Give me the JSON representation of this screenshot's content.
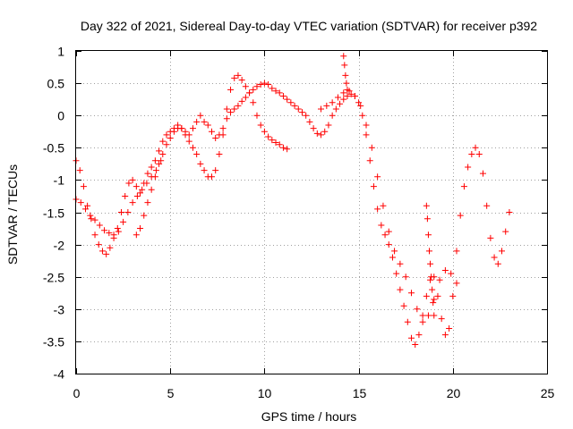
{
  "chart_data": {
    "type": "scatter",
    "title": "Day 322 of 2021, Sidereal Day-to-day VTEC variation (SDTVAR) for receiver p392",
    "xlabel": "GPS time / hours",
    "ylabel": "SDTVAR / TECUs",
    "xlim": [
      0,
      25
    ],
    "ylim": [
      -4,
      1
    ],
    "xticks": [
      0,
      5,
      10,
      15,
      20,
      25
    ],
    "xtick_labels": [
      "0",
      "5",
      "10",
      "15",
      "20",
      "25"
    ],
    "yticks": [
      1,
      0.5,
      0,
      -0.5,
      -1,
      -1.5,
      -2,
      -2.5,
      -3,
      -3.5,
      -4
    ],
    "ytick_labels": [
      "1",
      "0.5",
      "0",
      "-0.5",
      "-1",
      "-1.5",
      "-2",
      "-2.5",
      "-3",
      "-3.5",
      "-4"
    ],
    "grid": true,
    "marker": "+",
    "series": [
      {
        "name": "SDTVAR",
        "color": "#ff0000",
        "traces": [
          {
            "x": [
              0.0,
              0.25,
              0.5,
              0.75,
              1.0,
              1.25,
              1.5,
              1.75,
              2.0,
              2.25,
              2.5,
              2.75,
              3.0,
              3.25,
              3.5,
              3.75,
              4.0,
              4.25,
              4.5
            ],
            "y": [
              -1.3,
              -1.35,
              -1.45,
              -1.55,
              -1.62,
              -1.7,
              -1.78,
              -1.82,
              -1.85,
              -1.8,
              -1.65,
              -1.5,
              -1.35,
              -1.25,
              -1.15,
              -1.05,
              -0.95,
              -0.85,
              -0.7
            ]
          },
          {
            "x": [
              0.0,
              0.2,
              0.4,
              0.6,
              0.8,
              1.0,
              1.2,
              1.4,
              1.6,
              1.8,
              2.0,
              2.2,
              2.4,
              2.6,
              2.8,
              3.0,
              3.2,
              3.4,
              3.6,
              3.8,
              4.0,
              4.2,
              4.4,
              4.6,
              4.8,
              5.0,
              5.2,
              5.4,
              5.6,
              5.8,
              6.0,
              6.2,
              6.4,
              6.6,
              6.8,
              7.0,
              7.2,
              7.4,
              7.6,
              7.8,
              8.0,
              8.2,
              8.4,
              8.6,
              8.8,
              9.0,
              9.2,
              9.4,
              9.6,
              9.8,
              10.0,
              10.2,
              10.4,
              10.6,
              10.8,
              11.0,
              11.2
            ],
            "y": [
              -0.7,
              -0.85,
              -1.1,
              -1.4,
              -1.6,
              -1.85,
              -2.0,
              -2.1,
              -2.15,
              -2.05,
              -1.9,
              -1.75,
              -1.5,
              -1.25,
              -1.05,
              -1.0,
              -1.1,
              -1.2,
              -1.05,
              -0.9,
              -0.8,
              -0.7,
              -0.55,
              -0.4,
              -0.3,
              -0.25,
              -0.2,
              -0.15,
              -0.2,
              -0.3,
              -0.4,
              -0.5,
              -0.6,
              -0.75,
              -0.85,
              -0.95,
              -0.95,
              -0.85,
              -0.6,
              -0.3,
              0.1,
              0.4,
              0.58,
              0.62,
              0.55,
              0.45,
              0.35,
              0.2,
              0.0,
              -0.15,
              -0.25,
              -0.33,
              -0.38,
              -0.42,
              -0.45,
              -0.5,
              -0.52
            ]
          },
          {
            "x": [
              3.2,
              3.4,
              3.6,
              3.8,
              4.0,
              4.2,
              4.4,
              4.6,
              4.8,
              5.0,
              5.2,
              5.4,
              5.6,
              5.8,
              6.0,
              6.2,
              6.4,
              6.6,
              6.8,
              7.0,
              7.2,
              7.4,
              7.6,
              7.8,
              8.0,
              8.2,
              8.4,
              8.6,
              8.8,
              9.0,
              9.2,
              9.4,
              9.6,
              9.8,
              10.0,
              10.2,
              10.4,
              10.6,
              10.8,
              11.0,
              11.2,
              11.4,
              11.6,
              11.8,
              12.0,
              12.2,
              12.4,
              12.6,
              12.8,
              13.0,
              13.2,
              13.4,
              13.6,
              13.8,
              14.0,
              14.2,
              14.4,
              14.6,
              14.8,
              15.0,
              15.2,
              15.4,
              15.6,
              15.8,
              16.0,
              16.2,
              16.4,
              16.6,
              16.8,
              17.0,
              17.2,
              17.4,
              17.6,
              17.8,
              18.0,
              18.2,
              18.4,
              18.6,
              18.8,
              19.0,
              19.2,
              19.4,
              19.6,
              19.8,
              20.0,
              20.2,
              20.4,
              20.6,
              20.8,
              21.0,
              21.2,
              21.4,
              21.6,
              21.8,
              22.0,
              22.2,
              22.4,
              22.6,
              22.8,
              23.0
            ],
            "y": [
              -1.85,
              -1.75,
              -1.55,
              -1.35,
              -1.15,
              -0.95,
              -0.75,
              -0.6,
              -0.45,
              -0.35,
              -0.25,
              -0.2,
              -0.2,
              -0.25,
              -0.3,
              -0.2,
              -0.1,
              0.0,
              -0.1,
              -0.15,
              -0.25,
              -0.35,
              -0.3,
              -0.2,
              -0.05,
              0.05,
              0.1,
              0.15,
              0.22,
              0.28,
              0.35,
              0.4,
              0.45,
              0.48,
              0.5,
              0.48,
              0.42,
              0.38,
              0.35,
              0.3,
              0.25,
              0.2,
              0.15,
              0.1,
              0.05,
              0.0,
              -0.1,
              -0.2,
              -0.28,
              -0.3,
              -0.25,
              -0.15,
              0.0,
              0.1,
              0.18,
              0.25,
              0.3,
              0.33,
              0.3,
              0.2,
              0.0,
              -0.3,
              -0.7,
              -1.1,
              -1.45,
              -1.7,
              -1.85,
              -2.0,
              -2.2,
              -2.45,
              -2.7,
              -2.95,
              -3.2,
              -3.45,
              -3.55,
              -3.4,
              -3.1,
              -2.8,
              -2.55,
              -2.5,
              -2.8,
              -3.15,
              -3.4,
              -3.3,
              -2.8,
              -2.1,
              -1.55,
              -1.1,
              -0.8,
              -0.6,
              -0.5,
              -0.6,
              -0.9,
              -1.4,
              -1.9,
              -2.2,
              -2.3,
              -2.1,
              -1.8,
              -1.5
            ]
          },
          {
            "x": [
              13.0,
              13.3,
              13.6,
              13.9,
              14.2,
              14.5,
              14.8,
              15.1,
              15.4,
              15.7,
              16.0,
              16.3,
              16.6,
              16.9,
              17.2,
              17.5,
              17.8,
              18.1,
              18.4,
              18.7,
              19.0,
              19.3,
              19.6,
              19.9,
              20.2
            ],
            "y": [
              0.1,
              0.15,
              0.2,
              0.28,
              0.35,
              0.38,
              0.3,
              0.15,
              -0.15,
              -0.5,
              -0.95,
              -1.4,
              -1.8,
              -2.1,
              -2.3,
              -2.5,
              -2.75,
              -3.0,
              -3.2,
              -3.1,
              -2.85,
              -2.55,
              -2.4,
              -2.45,
              -2.6
            ]
          },
          {
            "x": [
              18.6,
              18.65,
              18.7,
              18.75,
              18.8,
              18.85,
              18.9,
              18.95,
              19.0
            ],
            "y": [
              -1.4,
              -1.6,
              -1.85,
              -2.1,
              -2.3,
              -2.5,
              -2.7,
              -2.9,
              -3.1
            ]
          },
          {
            "x": [
              14.2,
              14.25,
              14.3,
              14.35,
              14.4
            ],
            "y": [
              0.92,
              0.78,
              0.62,
              0.5,
              0.4
            ]
          }
        ]
      }
    ]
  }
}
